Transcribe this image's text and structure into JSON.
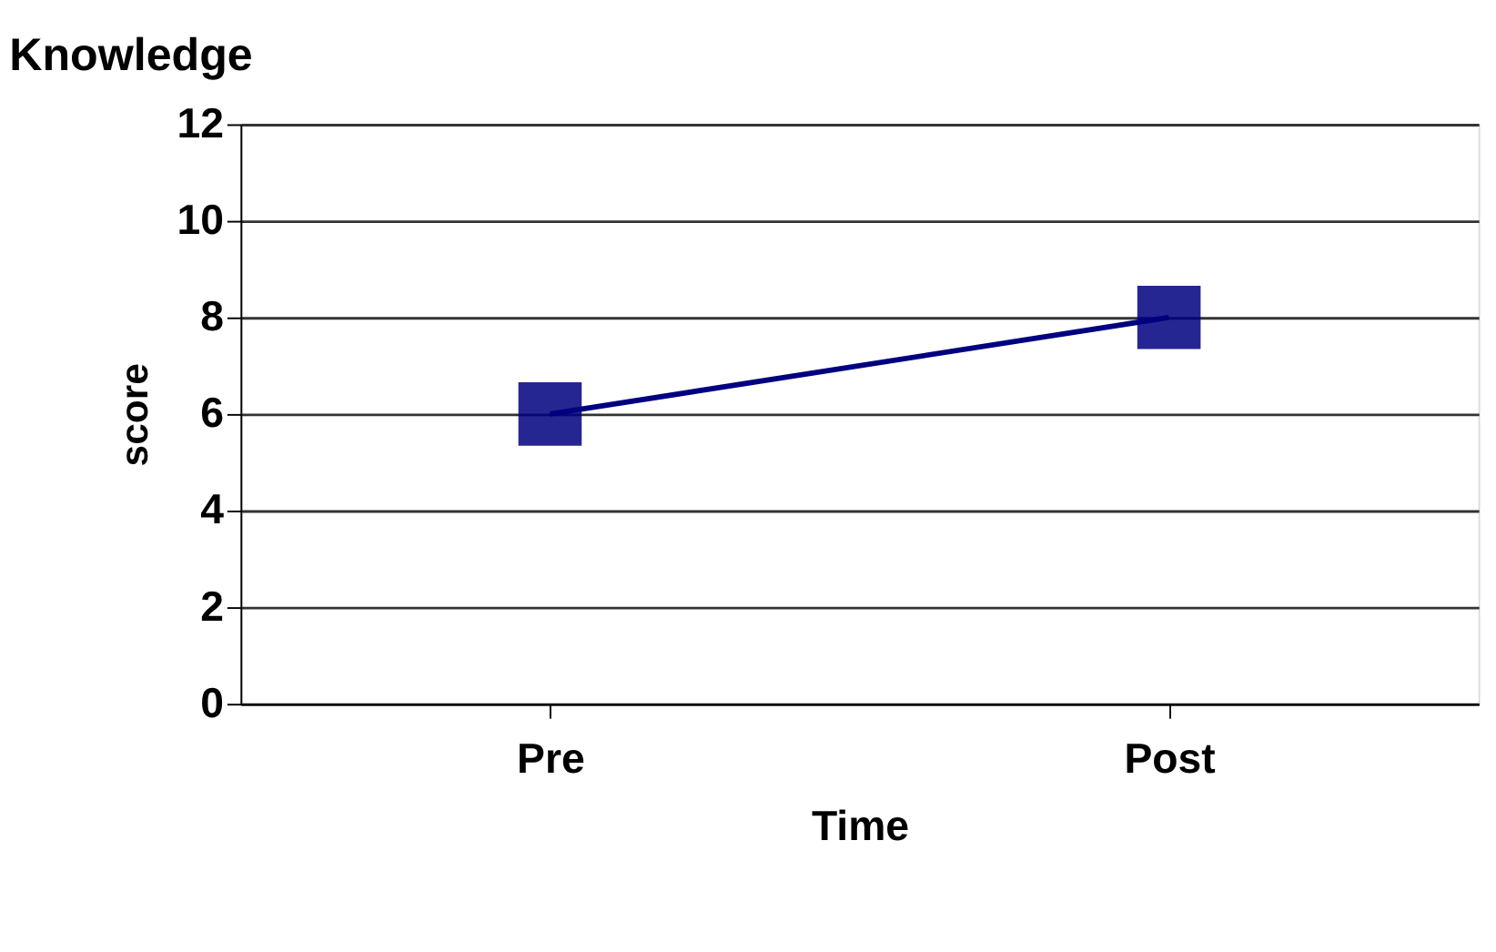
{
  "chart_data": {
    "type": "line",
    "title": "Knowledge",
    "xlabel": "Time",
    "ylabel": "score",
    "categories": [
      "Pre",
      "Post"
    ],
    "series": [
      {
        "color": "#000080",
        "values": [
          6,
          8
        ]
      }
    ],
    "ylim": [
      0,
      12
    ],
    "yticks": [
      0,
      2,
      4,
      6,
      8,
      10,
      12
    ],
    "grid": "y",
    "legend": false,
    "marker": "square",
    "line_style": "solid"
  }
}
